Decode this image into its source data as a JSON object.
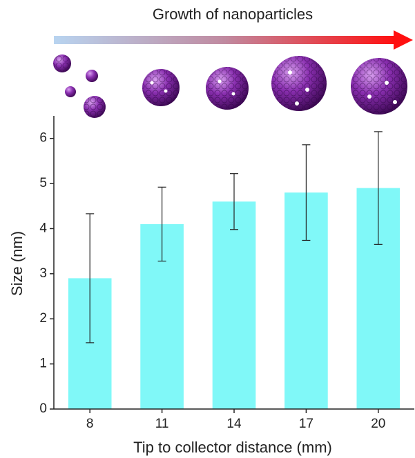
{
  "chart_data": {
    "type": "bar",
    "annotation": "Growth of nanoparticles",
    "x_label": "Tip to collector distance (mm)",
    "y_label": "Size (nm)",
    "categories": [
      "8",
      "11",
      "14",
      "17",
      "20"
    ],
    "values": [
      2.9,
      4.1,
      4.6,
      4.8,
      4.9
    ],
    "errors": [
      1.43,
      0.82,
      0.62,
      1.06,
      1.25
    ],
    "color": "#80f8f8",
    "ylim": [
      0,
      6.5
    ],
    "yticks": [
      0,
      1,
      2,
      3,
      4,
      5,
      6
    ],
    "grid": false
  }
}
